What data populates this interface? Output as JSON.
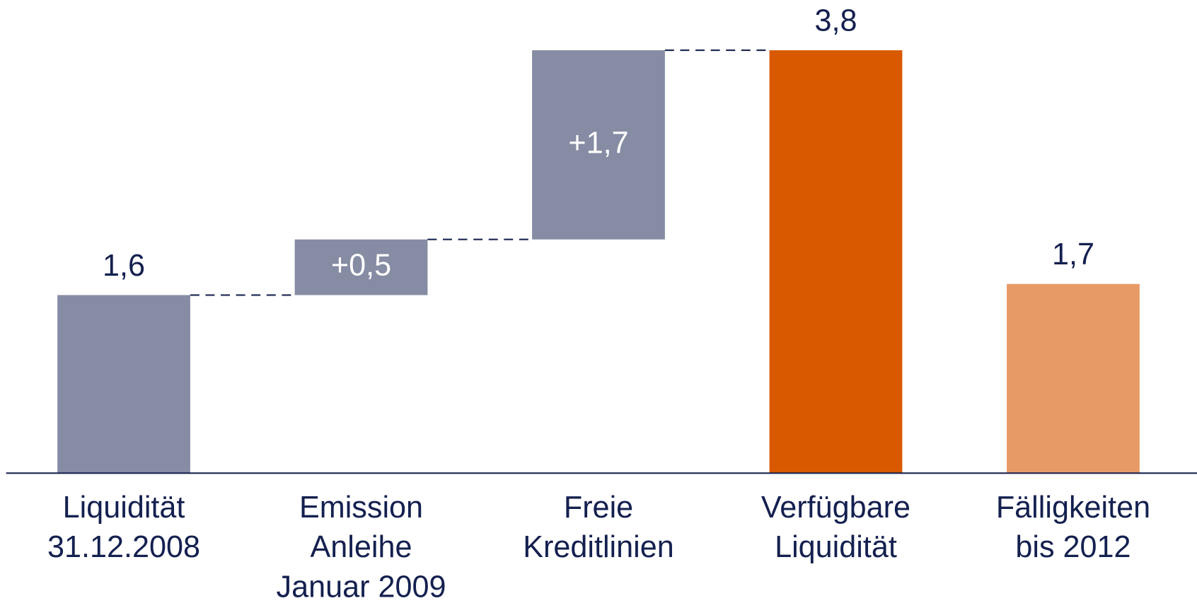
{
  "chart_data": {
    "type": "waterfall",
    "categories": [
      [
        "Liquidität",
        "31.12.2008"
      ],
      [
        "Emission",
        "Anleihe",
        "Januar 2009"
      ],
      [
        "Freie",
        "Kreditlinien"
      ],
      [
        "Verfügbare",
        "Liquidität"
      ],
      [
        "Fälligkeiten",
        "bis 2012"
      ]
    ],
    "values": [
      1.6,
      0.5,
      1.7,
      3.8,
      1.7
    ],
    "value_labels": [
      "1,6",
      "+0,5",
      "+1,7",
      "3,8",
      "1,7"
    ],
    "measures": [
      "total",
      "relative",
      "relative",
      "total",
      "total"
    ],
    "colors": [
      "#868ca3",
      "#868ca3",
      "#868ca3",
      "#d95900",
      "#e89a66"
    ],
    "ylim": [
      0,
      4.25
    ]
  }
}
